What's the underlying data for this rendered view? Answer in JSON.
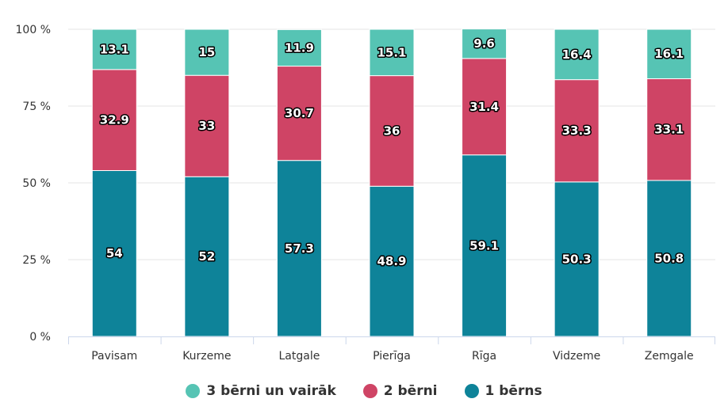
{
  "chart_data": {
    "type": "bar",
    "stacked": true,
    "categories": [
      "Pavisam",
      "Kurzeme",
      "Latgale",
      "Pierīga",
      "Rīga",
      "Vidzeme",
      "Zemgale"
    ],
    "series": [
      {
        "name": "1 bērns",
        "color": "#0e8399",
        "values": [
          54,
          52,
          57.3,
          48.9,
          59.1,
          50.3,
          50.8
        ]
      },
      {
        "name": "2 bērni",
        "color": "#cf4465",
        "values": [
          32.9,
          33,
          30.7,
          36,
          31.4,
          33.3,
          33.1
        ]
      },
      {
        "name": "3 bērni un vairāk",
        "color": "#56c4b4",
        "values": [
          13.1,
          15,
          11.9,
          15.1,
          9.6,
          16.4,
          16.1
        ]
      }
    ],
    "yticks": [
      "0 %",
      "25 %",
      "50 %",
      "75 %",
      "100 %"
    ],
    "ylim": [
      0,
      100
    ],
    "grid": true,
    "legend_position": "bottom-center"
  },
  "legend": [
    {
      "label": "3 bērni un vairāk",
      "color": "#56c4b4"
    },
    {
      "label": "2 bērni",
      "color": "#cf4465"
    },
    {
      "label": "1 bērns",
      "color": "#0e8399"
    }
  ]
}
